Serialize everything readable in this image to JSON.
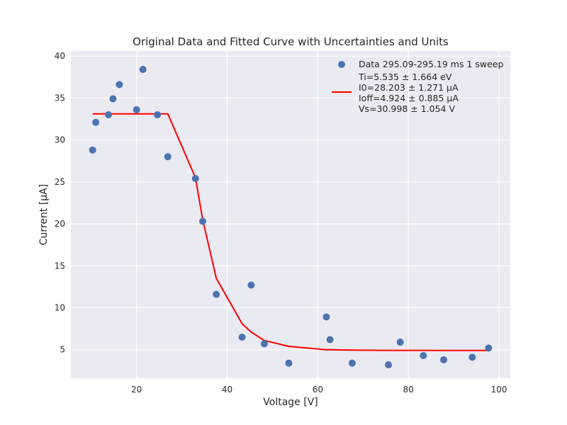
{
  "chart_data": {
    "type": "scatter",
    "title": "Original Data and Fitted Curve with Uncertainties and Units",
    "xlabel": "Voltage [V]",
    "ylabel": "Current [μA]",
    "xlim": [
      5.5,
      102.5
    ],
    "ylim": [
      1.6,
      40.6
    ],
    "xticks": [
      20,
      40,
      60,
      80,
      100
    ],
    "yticks": [
      5,
      10,
      15,
      20,
      25,
      30,
      35,
      40
    ],
    "grid": true,
    "legend_placement": "top-right",
    "series": [
      {
        "name": "Data 295.09-295.19 ms 1 sweep",
        "type": "scatter",
        "color": "#4c72b0",
        "x": [
          10.3,
          11.0,
          13.8,
          14.8,
          16.2,
          20.0,
          21.4,
          24.6,
          26.9,
          33.0,
          34.6,
          37.6,
          43.3,
          45.3,
          48.2,
          53.6,
          61.9,
          62.7,
          67.6,
          75.6,
          78.2,
          83.3,
          87.8,
          94.1,
          97.7
        ],
        "y": [
          28.8,
          32.1,
          33.0,
          34.9,
          36.6,
          33.6,
          38.4,
          33.0,
          28.0,
          25.4,
          20.3,
          11.6,
          6.5,
          12.7,
          5.7,
          3.4,
          8.9,
          6.2,
          3.4,
          3.2,
          5.9,
          4.3,
          3.8,
          4.1,
          5.2
        ]
      },
      {
        "name": "Ti=5.535 ± 1.664 eV\nI0=28.203 ± 1.271 μA\nIoff=4.924 ± 0.885 μA\nVs=30.998 ± 1.054 V",
        "type": "line",
        "color": "#ff0000",
        "x": [
          10.3,
          11.0,
          13.8,
          14.8,
          16.2,
          20.0,
          21.4,
          24.6,
          26.9,
          33.0,
          34.6,
          37.6,
          43.3,
          45.3,
          48.2,
          53.6,
          61.9,
          62.7,
          67.6,
          75.6,
          78.2,
          83.3,
          87.8,
          94.1,
          97.7
        ],
        "y": [
          33.1,
          33.1,
          33.1,
          33.1,
          33.1,
          33.1,
          33.1,
          33.1,
          33.1,
          25.5,
          20.5,
          13.5,
          8.1,
          7.1,
          6.1,
          5.4,
          5.0,
          5.0,
          4.95,
          4.93,
          4.93,
          4.93,
          4.92,
          4.92,
          4.92
        ]
      }
    ],
    "colors": {
      "background": "#eaeaf2",
      "grid": "#ffffff",
      "text": "#262626"
    }
  }
}
